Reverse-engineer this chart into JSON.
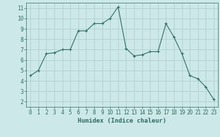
{
  "x": [
    0,
    1,
    2,
    3,
    4,
    5,
    6,
    7,
    8,
    9,
    10,
    11,
    12,
    13,
    14,
    15,
    16,
    17,
    18,
    19,
    20,
    21,
    22,
    23
  ],
  "y": [
    4.5,
    5.0,
    6.6,
    6.7,
    7.0,
    7.0,
    8.8,
    8.8,
    9.5,
    9.5,
    10.0,
    11.1,
    7.1,
    6.4,
    6.5,
    6.8,
    6.8,
    9.5,
    8.2,
    6.6,
    4.5,
    4.2,
    3.4,
    2.2
  ],
  "line_color": "#2e6b5e",
  "marker_color": "#2e6b5e",
  "bg_color": "#cce8e8",
  "grid_color": "#aacccc",
  "xlabel": "Humidex (Indice chaleur)",
  "xlim": [
    -0.5,
    23.5
  ],
  "ylim": [
    1.5,
    11.5
  ],
  "yticks": [
    2,
    3,
    4,
    5,
    6,
    7,
    8,
    9,
    10,
    11
  ],
  "xticks": [
    0,
    1,
    2,
    3,
    4,
    5,
    6,
    7,
    8,
    9,
    10,
    11,
    12,
    13,
    14,
    15,
    16,
    17,
    18,
    19,
    20,
    21,
    22,
    23
  ],
  "font_color": "#2e6b5e",
  "label_fontsize": 6.5,
  "tick_fontsize": 5.5
}
